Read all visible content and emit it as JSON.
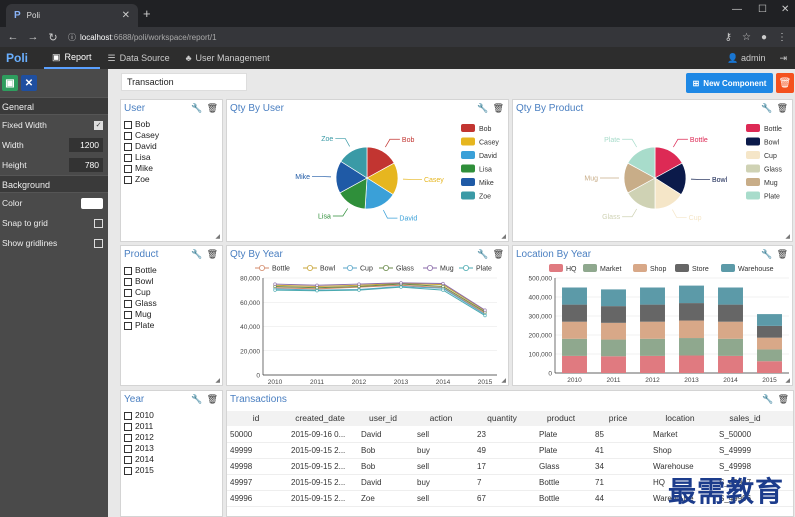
{
  "browser": {
    "tab_title": "Poli",
    "url_host": "localhost",
    "url_path": ":6688/poli/workspace/report/1"
  },
  "app": {
    "logo": "Poli",
    "nav": [
      "Report",
      "Data Source",
      "User Management"
    ],
    "user": "admin"
  },
  "sidebar": {
    "sections": {
      "general": "General",
      "background": "Background"
    },
    "fixed_width": "Fixed Width",
    "width_label": "Width",
    "width": "1200",
    "height_label": "Height",
    "height": "780",
    "color": "Color",
    "snap": "Snap to grid",
    "gridlines": "Show gridlines"
  },
  "toolbar": {
    "report_name": "Transaction",
    "new_component": "New Component"
  },
  "panels": {
    "user": {
      "title": "User",
      "items": [
        "Bob",
        "Casey",
        "David",
        "Lisa",
        "Mike",
        "Zoe"
      ]
    },
    "product": {
      "title": "Product",
      "items": [
        "Bottle",
        "Bowl",
        "Cup",
        "Glass",
        "Mug",
        "Plate"
      ]
    },
    "year": {
      "title": "Year",
      "items": [
        "2010",
        "2011",
        "2012",
        "2013",
        "2014",
        "2015"
      ]
    },
    "qty_user": {
      "title": "Qty By User"
    },
    "qty_product": {
      "title": "Qty By Product"
    },
    "qty_year": {
      "title": "Qty By Year"
    },
    "location_year": {
      "title": "Location By Year"
    },
    "transactions": {
      "title": "Transactions",
      "columns": [
        "id",
        "created_date",
        "user_id",
        "action",
        "quantity",
        "product",
        "price",
        "location",
        "sales_id"
      ],
      "rows": [
        [
          "50000",
          "2015-09-16 0...",
          "David",
          "sell",
          "23",
          "Plate",
          "85",
          "Market",
          "S_50000"
        ],
        [
          "49999",
          "2015-09-15 2...",
          "Bob",
          "buy",
          "49",
          "Plate",
          "41",
          "Shop",
          "S_49999"
        ],
        [
          "49998",
          "2015-09-15 2...",
          "Bob",
          "sell",
          "17",
          "Glass",
          "34",
          "Warehouse",
          "S_49998"
        ],
        [
          "49997",
          "2015-09-15 2...",
          "David",
          "buy",
          "7",
          "Bottle",
          "71",
          "HQ",
          "S_49997"
        ],
        [
          "49996",
          "2015-09-15 2...",
          "Zoe",
          "sell",
          "67",
          "Bottle",
          "44",
          "Warehouse",
          "S_49996"
        ]
      ]
    }
  },
  "chart_data": [
    {
      "type": "pie",
      "title": "Qty By User",
      "categories": [
        "Bob",
        "Casey",
        "David",
        "Lisa",
        "Mike",
        "Zoe"
      ],
      "values": [
        17,
        17,
        17,
        16,
        17,
        16
      ],
      "colors": [
        "#c23531",
        "#e6b61f",
        "#3aa0d8",
        "#2f8f3a",
        "#1f5aa6",
        "#3a9aa6"
      ]
    },
    {
      "type": "pie",
      "title": "Qty By Product",
      "categories": [
        "Bottle",
        "Bowl",
        "Cup",
        "Glass",
        "Mug",
        "Plate"
      ],
      "values": [
        17,
        17,
        16,
        17,
        16,
        17
      ],
      "colors": [
        "#dd2a55",
        "#0b1a4a",
        "#f5e6c8",
        "#cfd2b4",
        "#c8ad88",
        "#a8dccb"
      ]
    },
    {
      "type": "line",
      "title": "Qty By Year",
      "x": [
        "2010",
        "2011",
        "2012",
        "2013",
        "2014",
        "2015"
      ],
      "ylim": [
        0,
        80000
      ],
      "yticks": [
        0,
        20000,
        40000,
        60000,
        80000
      ],
      "series": [
        {
          "name": "Bottle",
          "values": [
            72000,
            71000,
            72500,
            74000,
            72000,
            51000
          ],
          "color": "#d38a6a"
        },
        {
          "name": "Bowl",
          "values": [
            74000,
            73000,
            74000,
            75500,
            74500,
            53000
          ],
          "color": "#c9a63a"
        },
        {
          "name": "Cup",
          "values": [
            71000,
            70000,
            70500,
            73000,
            71500,
            50000
          ],
          "color": "#5aa6c8"
        },
        {
          "name": "Glass",
          "values": [
            73000,
            72000,
            73000,
            75000,
            73000,
            52000
          ],
          "color": "#6a8a4a"
        },
        {
          "name": "Mug",
          "values": [
            75000,
            74000,
            75000,
            76000,
            75500,
            53500
          ],
          "color": "#8a6aa8"
        },
        {
          "name": "Plate",
          "values": [
            70000,
            69500,
            70000,
            72500,
            70000,
            49000
          ],
          "color": "#4aaab0"
        }
      ]
    },
    {
      "type": "bar",
      "stacked": true,
      "title": "Location By Year",
      "categories": [
        "2010",
        "2011",
        "2012",
        "2013",
        "2014",
        "2015"
      ],
      "ylim": [
        0,
        500000
      ],
      "yticks": [
        0,
        100000,
        200000,
        300000,
        400000,
        500000
      ],
      "series": [
        {
          "name": "HQ",
          "values": [
            90000,
            88000,
            90000,
            92000,
            90000,
            62000
          ],
          "color": "#e07a80"
        },
        {
          "name": "Market",
          "values": [
            90000,
            88000,
            90000,
            92000,
            90000,
            62000
          ],
          "color": "#8fa88e"
        },
        {
          "name": "Shop",
          "values": [
            90000,
            88000,
            90000,
            92000,
            90000,
            62000
          ],
          "color": "#d8a888"
        },
        {
          "name": "Store",
          "values": [
            90000,
            88000,
            90000,
            92000,
            90000,
            62000
          ],
          "color": "#666666"
        },
        {
          "name": "Warehouse",
          "values": [
            90000,
            88000,
            90000,
            92000,
            90000,
            62000
          ],
          "color": "#5c9aa8"
        }
      ]
    }
  ]
}
